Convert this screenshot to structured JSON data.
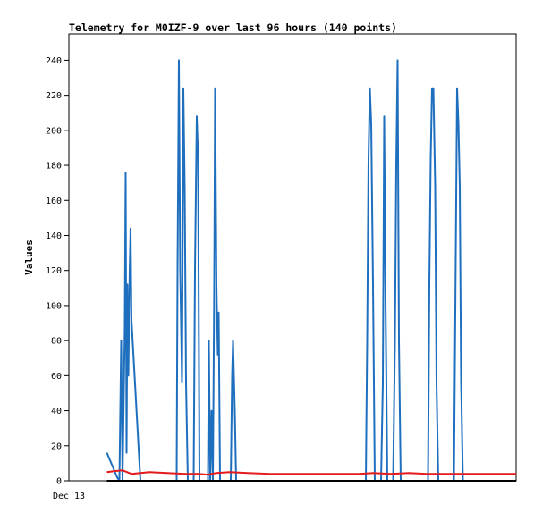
{
  "chart_data": {
    "type": "line",
    "title": "Telemetry for M0IZF-9 over last 96 hours (140 points)",
    "ylabel": "Values",
    "xlabel": "",
    "x_tick_labels": [
      "Dec 13"
    ],
    "ylim": [
      0,
      255
    ],
    "y_ticks": [
      0,
      20,
      40,
      60,
      80,
      100,
      120,
      140,
      160,
      180,
      200,
      220,
      240
    ],
    "xlim": [
      0,
      1
    ],
    "grid": false,
    "series": [
      {
        "color": "#1f6fbf",
        "points": [
          [
            0.085,
            16
          ],
          [
            0.108,
            2
          ],
          [
            0.113,
            0
          ],
          [
            0.117,
            80
          ],
          [
            0.12,
            0
          ],
          [
            0.125,
            88
          ],
          [
            0.127,
            176
          ],
          [
            0.129,
            16
          ],
          [
            0.131,
            112
          ],
          [
            0.133,
            60
          ],
          [
            0.136,
            120
          ],
          [
            0.138,
            144
          ],
          [
            0.14,
            92
          ],
          [
            0.16,
            0
          ],
          [
            0.241,
            0
          ],
          [
            0.243,
            120
          ],
          [
            0.246,
            240
          ],
          [
            0.249,
            120
          ],
          [
            0.253,
            56
          ],
          [
            0.256,
            224
          ],
          [
            0.259,
            168
          ],
          [
            0.262,
            56
          ],
          [
            0.266,
            0
          ],
          [
            0.279,
            0
          ],
          [
            0.282,
            120
          ],
          [
            0.286,
            208
          ],
          [
            0.289,
            184
          ],
          [
            0.292,
            0
          ],
          [
            0.311,
            0
          ],
          [
            0.313,
            80
          ],
          [
            0.316,
            0
          ],
          [
            0.319,
            40
          ],
          [
            0.322,
            0
          ],
          [
            0.325,
            112
          ],
          [
            0.327,
            224
          ],
          [
            0.33,
            112
          ],
          [
            0.333,
            72
          ],
          [
            0.335,
            96
          ],
          [
            0.338,
            0
          ],
          [
            0.362,
            0
          ],
          [
            0.365,
            60
          ],
          [
            0.367,
            80
          ],
          [
            0.371,
            40
          ],
          [
            0.374,
            0
          ],
          [
            0.664,
            0
          ],
          [
            0.667,
            80
          ],
          [
            0.67,
            184
          ],
          [
            0.673,
            224
          ],
          [
            0.676,
            204
          ],
          [
            0.68,
            112
          ],
          [
            0.684,
            0
          ],
          [
            0.698,
            0
          ],
          [
            0.702,
            56
          ],
          [
            0.705,
            208
          ],
          [
            0.708,
            104
          ],
          [
            0.712,
            0
          ],
          [
            0.725,
            0
          ],
          [
            0.729,
            80
          ],
          [
            0.732,
            180
          ],
          [
            0.735,
            240
          ],
          [
            0.738,
            80
          ],
          [
            0.742,
            0
          ],
          [
            0.803,
            0
          ],
          [
            0.806,
            112
          ],
          [
            0.809,
            184
          ],
          [
            0.812,
            224
          ],
          [
            0.815,
            224
          ],
          [
            0.819,
            168
          ],
          [
            0.822,
            56
          ],
          [
            0.826,
            0
          ],
          [
            0.861,
            0
          ],
          [
            0.865,
            128
          ],
          [
            0.868,
            224
          ],
          [
            0.871,
            204
          ],
          [
            0.874,
            168
          ],
          [
            0.877,
            56
          ],
          [
            0.881,
            0
          ]
        ]
      },
      {
        "color": "#e41a1c",
        "points": [
          [
            0.085,
            5
          ],
          [
            0.1,
            5.5
          ],
          [
            0.12,
            6
          ],
          [
            0.14,
            4
          ],
          [
            0.16,
            4.5
          ],
          [
            0.18,
            5
          ],
          [
            0.22,
            4.5
          ],
          [
            0.26,
            4
          ],
          [
            0.29,
            4
          ],
          [
            0.31,
            3.5
          ],
          [
            0.33,
            4.5
          ],
          [
            0.36,
            5
          ],
          [
            0.4,
            4.5
          ],
          [
            0.45,
            4
          ],
          [
            0.55,
            4
          ],
          [
            0.65,
            4
          ],
          [
            0.68,
            4.5
          ],
          [
            0.72,
            4
          ],
          [
            0.76,
            4.5
          ],
          [
            0.8,
            4
          ],
          [
            0.85,
            4
          ],
          [
            0.9,
            4
          ],
          [
            0.95,
            4
          ],
          [
            1.0,
            4
          ]
        ]
      },
      {
        "color": "#000000",
        "points": [
          [
            0.085,
            0
          ],
          [
            1.0,
            0
          ]
        ]
      }
    ]
  }
}
